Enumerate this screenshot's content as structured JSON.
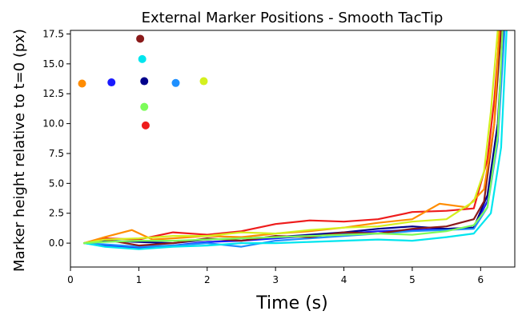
{
  "chart_data": {
    "type": "line",
    "title": "External Marker Positions - Smooth TacTip",
    "xlabel": "Time (s)",
    "ylabel": "Marker height relative to t=0 (px)",
    "xlim": [
      0,
      6.5
    ],
    "ylim": [
      -2.0,
      17.8
    ],
    "xticks": [
      0,
      1,
      2,
      3,
      4,
      5,
      6
    ],
    "xtick_labels": [
      "0",
      "1",
      "2",
      "3",
      "4",
      "5",
      "6"
    ],
    "yticks": [
      0.0,
      2.5,
      5.0,
      7.5,
      10.0,
      12.5,
      15.0,
      17.5
    ],
    "ytick_labels": [
      "0.0",
      "2.5",
      "5.0",
      "7.5",
      "10.0",
      "12.5",
      "15.0",
      "17.5"
    ],
    "grid": false,
    "series": [
      {
        "color": "#1a1aff",
        "points": [
          [
            0.2,
            0.0
          ],
          [
            0.5,
            -0.2
          ],
          [
            1.0,
            -0.4
          ],
          [
            1.5,
            -0.2
          ],
          [
            2.0,
            0.1
          ],
          [
            2.5,
            0.2
          ],
          [
            3.0,
            0.4
          ],
          [
            3.5,
            0.6
          ],
          [
            4.0,
            0.8
          ],
          [
            4.5,
            1.0
          ],
          [
            5.0,
            1.1
          ],
          [
            5.5,
            1.2
          ],
          [
            5.9,
            1.3
          ],
          [
            6.1,
            3.5
          ],
          [
            6.25,
            9.0
          ],
          [
            6.33,
            17.8
          ]
        ]
      },
      {
        "color": "#00008b",
        "points": [
          [
            0.2,
            0.0
          ],
          [
            0.5,
            0.2
          ],
          [
            1.0,
            0.1
          ],
          [
            1.5,
            0.0
          ],
          [
            2.0,
            0.3
          ],
          [
            2.5,
            0.4
          ],
          [
            3.0,
            0.5
          ],
          [
            3.5,
            0.7
          ],
          [
            4.0,
            0.9
          ],
          [
            4.5,
            1.2
          ],
          [
            5.0,
            1.4
          ],
          [
            5.5,
            1.2
          ],
          [
            5.9,
            1.3
          ],
          [
            6.1,
            4.0
          ],
          [
            6.25,
            10.0
          ],
          [
            6.33,
            17.8
          ]
        ]
      },
      {
        "color": "#1e90ff",
        "points": [
          [
            0.2,
            0.0
          ],
          [
            0.5,
            -0.1
          ],
          [
            1.0,
            -0.3
          ],
          [
            1.5,
            -0.2
          ],
          [
            2.0,
            0.0
          ],
          [
            2.5,
            -0.3
          ],
          [
            3.0,
            0.2
          ],
          [
            3.5,
            0.4
          ],
          [
            4.0,
            0.6
          ],
          [
            4.5,
            0.8
          ],
          [
            5.0,
            1.0
          ],
          [
            5.5,
            1.1
          ],
          [
            5.9,
            1.2
          ],
          [
            6.1,
            3.0
          ],
          [
            6.25,
            8.5
          ],
          [
            6.35,
            17.8
          ]
        ]
      },
      {
        "color": "#00e5ee",
        "points": [
          [
            0.2,
            0.0
          ],
          [
            0.5,
            -0.3
          ],
          [
            1.0,
            -0.5
          ],
          [
            1.5,
            -0.3
          ],
          [
            2.0,
            -0.2
          ],
          [
            2.5,
            0.0
          ],
          [
            3.0,
            0.0
          ],
          [
            3.5,
            0.1
          ],
          [
            4.0,
            0.2
          ],
          [
            4.5,
            0.3
          ],
          [
            5.0,
            0.2
          ],
          [
            5.5,
            0.5
          ],
          [
            5.9,
            0.8
          ],
          [
            6.15,
            2.5
          ],
          [
            6.3,
            8.0
          ],
          [
            6.38,
            17.8
          ]
        ]
      },
      {
        "color": "#8a1a1a",
        "points": [
          [
            0.2,
            0.0
          ],
          [
            0.5,
            0.3
          ],
          [
            1.0,
            -0.2
          ],
          [
            1.5,
            0.0
          ],
          [
            2.0,
            0.4
          ],
          [
            2.5,
            0.2
          ],
          [
            3.0,
            0.6
          ],
          [
            3.5,
            0.5
          ],
          [
            4.0,
            0.9
          ],
          [
            4.5,
            0.8
          ],
          [
            5.0,
            1.2
          ],
          [
            5.5,
            1.4
          ],
          [
            5.9,
            2.0
          ],
          [
            6.05,
            3.5
          ],
          [
            6.2,
            10.0
          ],
          [
            6.3,
            17.8
          ]
        ]
      },
      {
        "color": "#ee1c1c",
        "points": [
          [
            0.2,
            0.0
          ],
          [
            0.5,
            0.4
          ],
          [
            1.0,
            0.3
          ],
          [
            1.5,
            0.9
          ],
          [
            2.0,
            0.7
          ],
          [
            2.5,
            1.0
          ],
          [
            3.0,
            1.6
          ],
          [
            3.5,
            1.9
          ],
          [
            4.0,
            1.8
          ],
          [
            4.5,
            2.0
          ],
          [
            5.0,
            2.6
          ],
          [
            5.5,
            2.7
          ],
          [
            5.9,
            2.9
          ],
          [
            6.1,
            7.0
          ],
          [
            6.2,
            12.0
          ],
          [
            6.28,
            17.8
          ]
        ]
      },
      {
        "color": "#ff8c00",
        "points": [
          [
            0.2,
            0.0
          ],
          [
            0.5,
            0.5
          ],
          [
            0.9,
            1.1
          ],
          [
            1.2,
            0.3
          ],
          [
            1.5,
            0.4
          ],
          [
            2.0,
            0.6
          ],
          [
            2.5,
            0.5
          ],
          [
            3.0,
            0.8
          ],
          [
            3.5,
            1.0
          ],
          [
            4.0,
            1.3
          ],
          [
            4.5,
            1.7
          ],
          [
            5.0,
            2.0
          ],
          [
            5.4,
            3.3
          ],
          [
            5.8,
            3.0
          ],
          [
            6.05,
            4.5
          ],
          [
            6.2,
            10.0
          ],
          [
            6.27,
            17.8
          ]
        ]
      },
      {
        "color": "#d4f01e",
        "points": [
          [
            0.2,
            0.0
          ],
          [
            0.5,
            0.3
          ],
          [
            1.0,
            0.4
          ],
          [
            1.5,
            0.6
          ],
          [
            2.0,
            0.6
          ],
          [
            2.5,
            0.9
          ],
          [
            3.0,
            0.8
          ],
          [
            3.5,
            1.1
          ],
          [
            4.0,
            1.3
          ],
          [
            4.5,
            1.4
          ],
          [
            5.0,
            1.8
          ],
          [
            5.5,
            2.0
          ],
          [
            5.9,
            3.5
          ],
          [
            6.05,
            6.0
          ],
          [
            6.15,
            11.0
          ],
          [
            6.25,
            17.8
          ]
        ]
      },
      {
        "color": "#7cfc5a",
        "points": [
          [
            0.2,
            0.0
          ],
          [
            0.5,
            0.1
          ],
          [
            1.0,
            0.2
          ],
          [
            1.5,
            0.2
          ],
          [
            2.0,
            0.3
          ],
          [
            2.5,
            0.4
          ],
          [
            3.0,
            0.5
          ],
          [
            3.5,
            0.6
          ],
          [
            4.0,
            0.7
          ],
          [
            4.5,
            0.8
          ],
          [
            5.0,
            0.7
          ],
          [
            5.5,
            1.0
          ],
          [
            5.9,
            1.5
          ],
          [
            6.1,
            3.0
          ],
          [
            6.25,
            9.0
          ],
          [
            6.32,
            17.8
          ]
        ]
      }
    ],
    "markers": [
      {
        "x": 0.17,
        "y": 13.35,
        "color": "#ff8c00"
      },
      {
        "x": 0.6,
        "y": 13.45,
        "color": "#1a1aff"
      },
      {
        "x": 1.02,
        "y": 17.1,
        "color": "#8a1a1a"
      },
      {
        "x": 1.05,
        "y": 15.4,
        "color": "#00e5ee"
      },
      {
        "x": 1.08,
        "y": 13.55,
        "color": "#00008b"
      },
      {
        "x": 1.08,
        "y": 11.4,
        "color": "#7cfc5a"
      },
      {
        "x": 1.1,
        "y": 9.85,
        "color": "#ee1c1c"
      },
      {
        "x": 1.54,
        "y": 13.4,
        "color": "#1e90ff"
      },
      {
        "x": 1.95,
        "y": 13.55,
        "color": "#d4f01e"
      }
    ]
  }
}
